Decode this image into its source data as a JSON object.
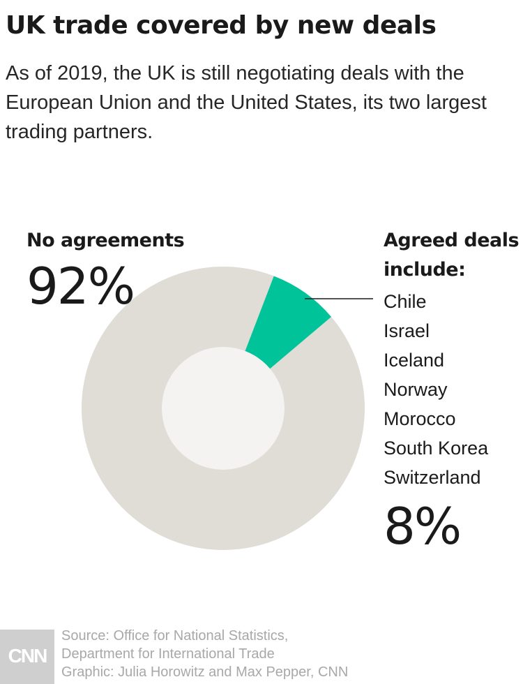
{
  "title": "UK trade covered by new deals",
  "subtitle": "As of 2019, the UK is still negotiating deals with the European Union and the United States, its two largest trading partners.",
  "labels": {
    "no_agreements_head": "No agreements",
    "no_agreements_pct": "92%",
    "agreed_head_line1": "Agreed deals",
    "agreed_head_line2": "include:",
    "agreed_pct": "8%"
  },
  "partners": [
    "Chile",
    "Israel",
    "Iceland",
    "Norway",
    "Morocco",
    "South Korea",
    "Switzerland"
  ],
  "chart_data": {
    "type": "pie",
    "categories": [
      "No agreements",
      "Agreed deals"
    ],
    "values": [
      92,
      8
    ],
    "colors": [
      "#e0dcd6",
      "#00c39a"
    ],
    "donut": true
  },
  "footer": {
    "logo": "CNN",
    "source_line1": "Source: Office for National Statistics,",
    "source_line2": "Department for International Trade",
    "credit": "Graphic: Julia Horowitz and Max Pepper, CNN"
  }
}
